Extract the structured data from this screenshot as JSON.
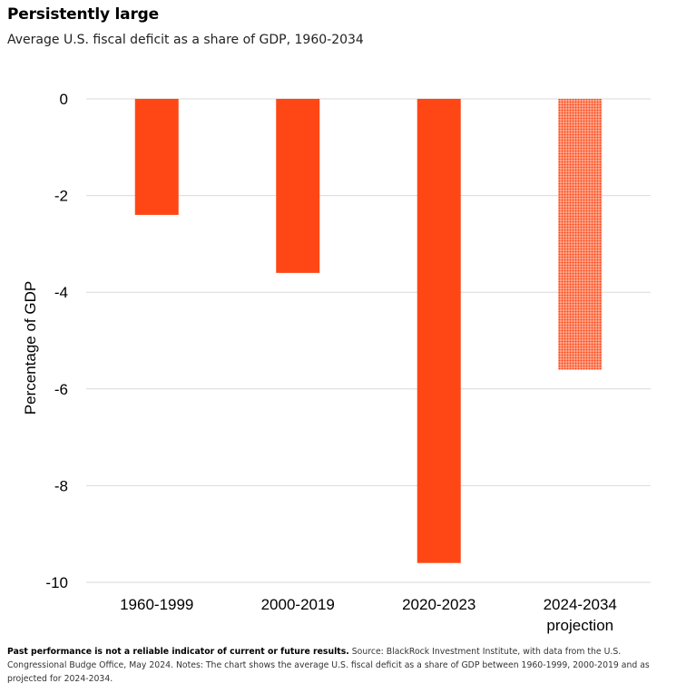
{
  "header": {
    "title": "Persistently large",
    "subtitle": "Average U.S. fiscal deficit as a share of GDP, 1960-2034"
  },
  "footnote": {
    "bold": "Past performance is not a reliable indicator of current or future results.",
    "text": " Source: BlackRock Investment Institute, with data from the U.S. Congressional Budge Office, May 2024. Notes: The chart shows the average U.S. fiscal deficit as a share of GDP between 1960-1999, 2000-2019 and as projected for 2024-2034."
  },
  "colors": {
    "bar": "#ff4716",
    "grid": "#d9d9d9"
  },
  "chart_data": {
    "type": "bar",
    "title": "Persistently large",
    "subtitle": "Average U.S. fiscal deficit as a share of GDP, 1960-2034",
    "ylabel": "Percentage of GDP",
    "xlabel": "",
    "categories": [
      [
        "1960-1999"
      ],
      [
        "2000-2019"
      ],
      [
        "2020-2023"
      ],
      [
        "2024-2034",
        "projection"
      ]
    ],
    "values": [
      -2.4,
      -3.6,
      -9.6,
      -5.6
    ],
    "projected": [
      false,
      false,
      false,
      true
    ],
    "ylim": [
      -10,
      0
    ],
    "yticks": [
      0,
      -2,
      -4,
      -6,
      -8,
      -10
    ],
    "grid": true,
    "legend": "none"
  }
}
